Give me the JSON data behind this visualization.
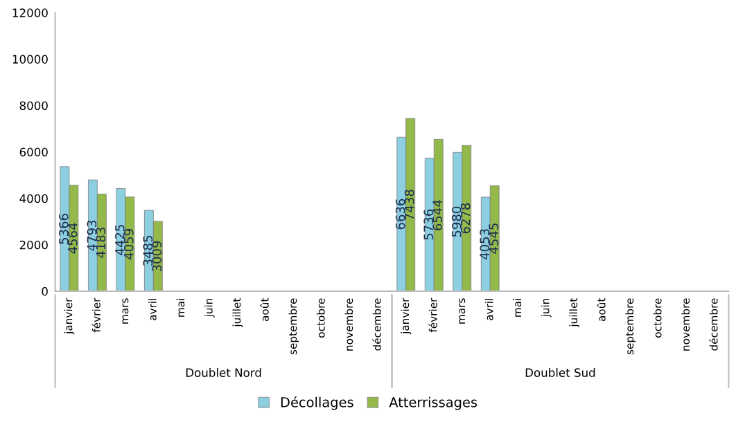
{
  "chart_data": {
    "type": "bar",
    "categories": [
      "janvier",
      "février",
      "mars",
      "avril",
      "mai",
      "juin",
      "juillet",
      "août",
      "septembre",
      "octobre",
      "novembre",
      "décembre",
      "janvier",
      "février",
      "mars",
      "avril",
      "mai",
      "juin",
      "juillet",
      "août",
      "septembre",
      "octobre",
      "novembre",
      "décembre"
    ],
    "series": [
      {
        "name": "Décollages",
        "color": "#8ccfe0",
        "values": [
          5366,
          4793,
          4425,
          3485,
          null,
          null,
          null,
          null,
          null,
          null,
          null,
          null,
          6636,
          5736,
          5980,
          4053,
          null,
          null,
          null,
          null,
          null,
          null,
          null,
          null
        ]
      },
      {
        "name": "Atterrissages",
        "color": "#92b94a",
        "values": [
          4564,
          4183,
          4059,
          3009,
          null,
          null,
          null,
          null,
          null,
          null,
          null,
          null,
          7438,
          6544,
          6278,
          4545,
          null,
          null,
          null,
          null,
          null,
          null,
          null,
          null
        ]
      }
    ],
    "annotations": [
      "Doublet Nord",
      "Doublet Sud"
    ],
    "ylim": [
      0,
      12000
    ],
    "yticks": [
      0,
      2000,
      4000,
      6000,
      8000,
      10000,
      12000
    ],
    "data_labels": true,
    "legend": "bottom",
    "grid": false
  }
}
